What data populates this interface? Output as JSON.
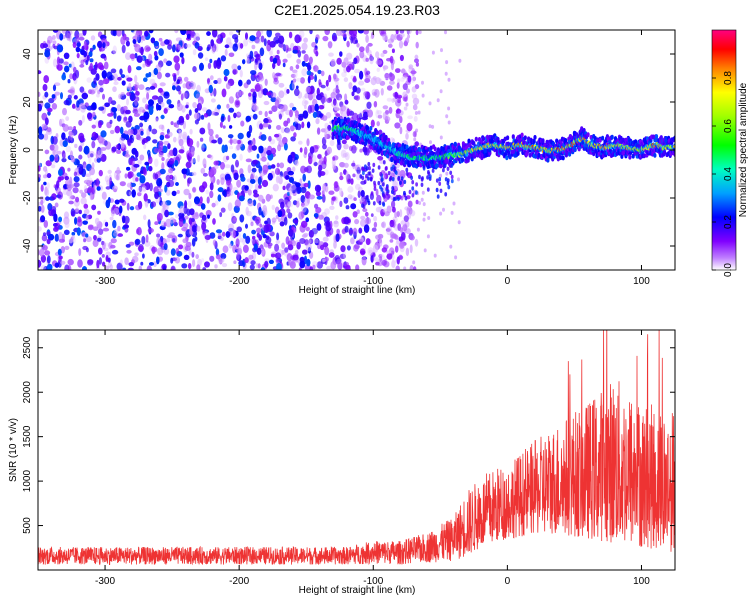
{
  "title": "C2E1.2025.054.19.23.R03",
  "chart_data": [
    {
      "type": "heatmap",
      "xlabel": "Height of straight line (km)",
      "ylabel": "Frequency (Hz)",
      "xlim": [
        -350,
        125
      ],
      "ylim": [
        -50,
        50
      ],
      "xticks": [
        -300,
        -200,
        -100,
        0,
        100
      ],
      "yticks": [
        -40,
        -20,
        0,
        20,
        40
      ],
      "colorbar": {
        "label": "Normalized spectral amplitude",
        "range": [
          0,
          1
        ],
        "ticks": [
          0.0,
          0.2,
          0.4,
          0.6,
          0.8
        ],
        "tick_labels": [
          "0.0",
          "0.2",
          "0.4",
          "0.6",
          "0.8"
        ],
        "colormap": [
          "#ffffff",
          "#8000ff",
          "#0000ff",
          "#00c0ff",
          "#00ff80",
          "#00ff00",
          "#c0ff00",
          "#ffff00",
          "#ff8000",
          "#ff0000",
          "#ff0080"
        ]
      },
      "ridge": {
        "x": [
          -130,
          -120,
          -110,
          -100,
          -90,
          -80,
          -70,
          -60,
          -50,
          -40,
          -30,
          -20,
          -10,
          0,
          10,
          20,
          30,
          40,
          50,
          55,
          60,
          70,
          80,
          90,
          100,
          110,
          120,
          125
        ],
        "y": [
          9,
          9,
          7,
          5,
          1,
          -2,
          -3,
          -3,
          -3,
          -2,
          -1,
          1,
          2,
          1,
          2,
          1,
          0,
          0,
          3,
          5,
          3,
          1,
          2,
          1,
          0,
          2,
          1,
          1
        ],
        "amplitude": [
          0.5,
          0.55,
          0.35,
          0.3,
          0.35,
          0.45,
          0.5,
          0.5,
          0.5,
          0.6,
          0.7,
          0.8,
          0.75,
          0.8,
          0.85,
          0.85,
          0.75,
          0.9,
          0.9,
          0.85,
          0.8,
          0.85,
          0.8,
          0.75,
          0.75,
          0.8,
          0.7,
          0.7
        ]
      },
      "noise_region": {
        "x_range": [
          -350,
          -75
        ],
        "amplitude_range": [
          0.0,
          0.25
        ]
      }
    },
    {
      "type": "line",
      "xlabel": "Height of straight line (km)",
      "ylabel": "SNR (10 * v/v)",
      "xlim": [
        -350,
        125
      ],
      "ylim": [
        0,
        2700
      ],
      "xticks": [
        -300,
        -200,
        -100,
        0,
        100
      ],
      "yticks": [
        500,
        1000,
        1500,
        2000,
        2500
      ],
      "series": [
        {
          "color": "#ee3333",
          "envelope_x": [
            -350,
            -120,
            -100,
            -80,
            -60,
            -40,
            -30,
            -20,
            -10,
            0,
            20,
            40,
            60,
            80,
            100,
            125
          ],
          "envelope_low": [
            60,
            60,
            70,
            60,
            80,
            100,
            150,
            250,
            300,
            350,
            400,
            400,
            350,
            300,
            250,
            200
          ],
          "envelope_high": [
            260,
            260,
            330,
            330,
            420,
            600,
            900,
            1050,
            1150,
            1200,
            1450,
            1700,
            1900,
            2200,
            1900,
            1800
          ]
        }
      ]
    }
  ]
}
